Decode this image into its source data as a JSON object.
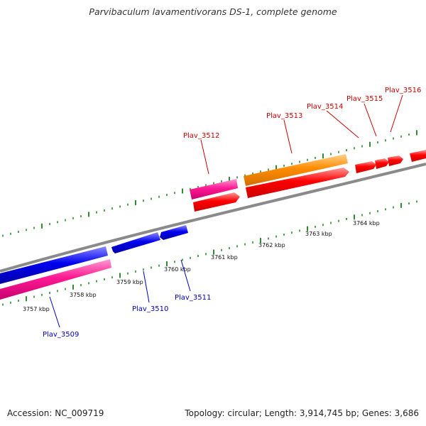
{
  "title": "Parvibaculum lavamentivorans DS-1, complete genome",
  "footer": {
    "accession": "Accession: NC_009719",
    "topology": "Topology: circular; Length: 3,914,745 bp; Genes: 3,686"
  },
  "colors": {
    "backbone": "#8a8a8a",
    "tick": "#2e8b2e",
    "forward_label": "#cc0000",
    "reverse_label": "#0000bb",
    "gene_red": "#ff0000",
    "gene_orange": "#ff8c00",
    "gene_pink": "#ff1493",
    "gene_blue": "#0000ee"
  },
  "scale": {
    "labels": [
      "3757 kbp",
      "3758 kbp",
      "3759 kbp",
      "3760 kbp",
      "3761 kbp",
      "3762 kbp",
      "3763 kbp",
      "3764 kbp"
    ]
  },
  "genes": {
    "forward": [
      {
        "label": "Plav_3512"
      },
      {
        "label": "Plav_3513"
      },
      {
        "label": "Plav_3514"
      },
      {
        "label": "Plav_3515"
      },
      {
        "label": "Plav_3516"
      }
    ],
    "reverse": [
      {
        "label": "Plav_3509"
      },
      {
        "label": "Plav_3510"
      },
      {
        "label": "Plav_3511"
      }
    ]
  }
}
